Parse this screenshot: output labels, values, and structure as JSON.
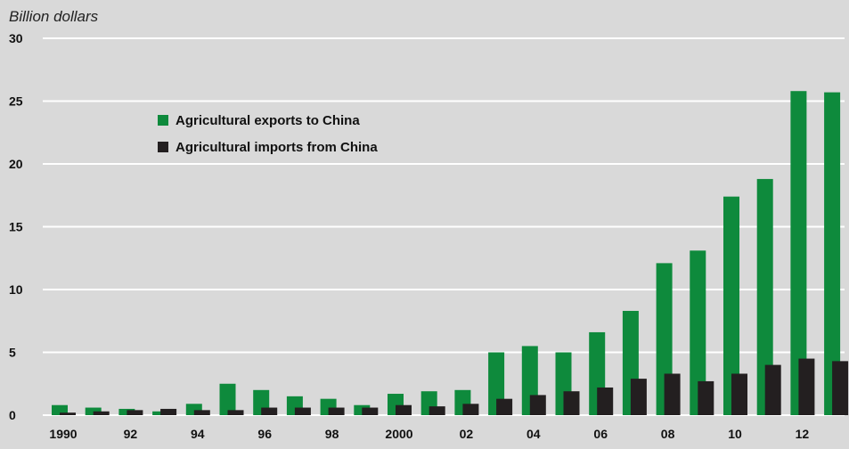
{
  "chart_data": {
    "type": "bar",
    "title": "",
    "ylabel": "Billion dollars",
    "xlabel": "",
    "ylim": [
      0,
      30
    ],
    "yticks": [
      0,
      5,
      10,
      15,
      20,
      25,
      30
    ],
    "grid": true,
    "legend_position": "upper-left",
    "categories": [
      "1990",
      "1991",
      "1992",
      "1993",
      "1994",
      "1995",
      "1996",
      "1997",
      "1998",
      "1999",
      "2000",
      "2001",
      "2002",
      "2003",
      "2004",
      "2005",
      "2006",
      "2007",
      "2008",
      "2009",
      "2010",
      "2011",
      "2012",
      "2013"
    ],
    "x_tick_labels": [
      "1990",
      "",
      "92",
      "",
      "94",
      "",
      "96",
      "",
      "98",
      "",
      "2000",
      "",
      "02",
      "",
      "04",
      "",
      "06",
      "",
      "08",
      "",
      "10",
      "",
      "12",
      ""
    ],
    "series": [
      {
        "name": "Agricultural exports to China",
        "color": "#0e8a3c",
        "values": [
          0.8,
          0.6,
          0.5,
          0.3,
          0.9,
          2.5,
          2.0,
          1.5,
          1.3,
          0.8,
          1.7,
          1.9,
          2.0,
          5.0,
          5.5,
          5.0,
          6.6,
          8.3,
          12.1,
          13.1,
          17.4,
          18.8,
          25.8,
          25.7
        ]
      },
      {
        "name": "Agricultural imports from China",
        "color": "#231f20",
        "values": [
          0.2,
          0.3,
          0.4,
          0.5,
          0.4,
          0.4,
          0.6,
          0.6,
          0.6,
          0.6,
          0.8,
          0.7,
          0.9,
          1.3,
          1.6,
          1.9,
          2.2,
          2.9,
          3.3,
          2.7,
          3.3,
          4.0,
          4.5,
          4.3
        ]
      }
    ]
  }
}
